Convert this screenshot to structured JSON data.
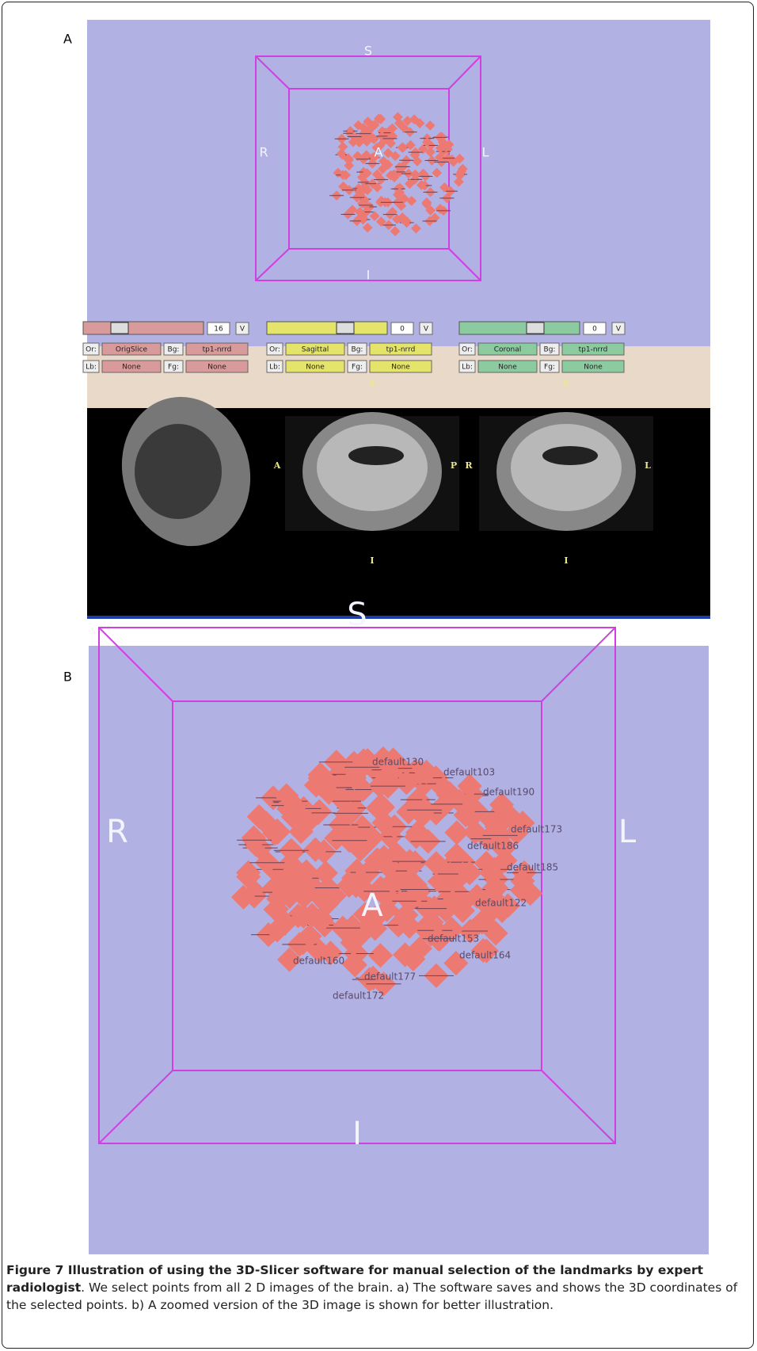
{
  "panel_a": {
    "label": "A",
    "view_3d": {
      "top": "S",
      "bottom": "I",
      "left": "R",
      "right": "L",
      "center": "A"
    },
    "controls": [
      {
        "slice": "16",
        "v": "V",
        "or": "Or:",
        "orient": "OrigSlice",
        "bg": "Bg:",
        "bg_volume": "tp1-nrrd",
        "lb": "Lb:",
        "lb_volume": "None",
        "fg": "Fg:",
        "fg_volume": "None"
      },
      {
        "slice": "0",
        "v": "V",
        "or": "Or:",
        "orient": "Sagittal",
        "bg": "Bg:",
        "bg_volume": "tp1-nrrd",
        "lb": "Lb:",
        "lb_volume": "None",
        "fg": "Fg:",
        "fg_volume": "None"
      },
      {
        "slice": "0",
        "v": "V",
        "or": "Or:",
        "orient": "Coronal",
        "bg": "Bg:",
        "bg_volume": "tp1-nrrd",
        "lb": "Lb:",
        "lb_volume": "None",
        "fg": "Fg:",
        "fg_volume": "None"
      }
    ],
    "slices": [
      {
        "right": "A"
      },
      {
        "top": "S",
        "bottom": "I",
        "right": "P"
      },
      {
        "top": "S",
        "bottom": "I",
        "left": "R",
        "right": "L"
      }
    ]
  },
  "panel_b": {
    "label": "B",
    "view_3d": {
      "top": "S",
      "bottom": "I",
      "left": "R",
      "right": "L",
      "center": "A"
    },
    "point_labels": [
      "default130",
      "default103",
      "default190",
      "default173",
      "default164",
      "default177",
      "default160",
      "default172",
      "default153",
      "default122",
      "default185",
      "default186"
    ]
  },
  "caption": {
    "bold": "Figure 7 Illustration of using the 3D-Slicer software for manual selection of the landmarks by expert radiologist",
    "text": ". We select points from all 2 D images of the brain. a) The software saves and shows the 3D coordinates of the selected points. b) A zoomed version of the 3D image is shown for better illustration."
  }
}
